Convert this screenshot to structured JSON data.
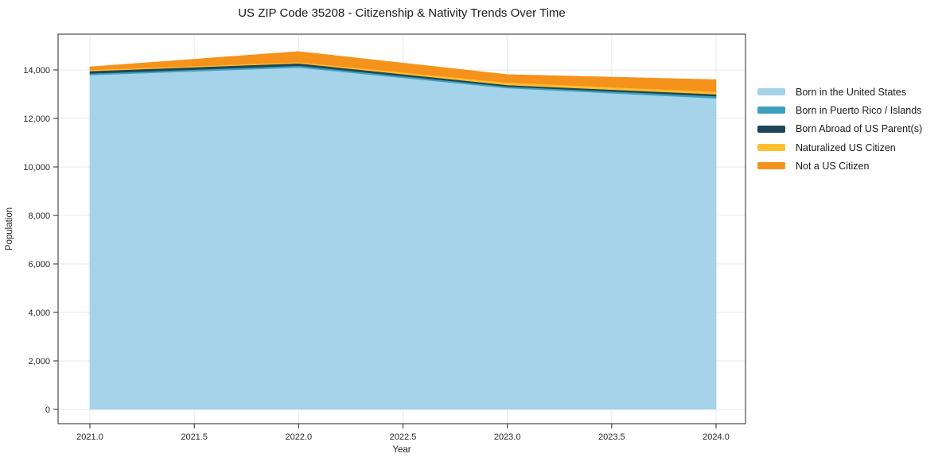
{
  "chart_data": {
    "type": "area",
    "stacked": true,
    "title": "US ZIP Code 35208 - Citizenship & Nativity Trends Over Time",
    "xlabel": "Year",
    "ylabel": "Population",
    "grid": true,
    "legend_position": "right-outside",
    "x": [
      2021,
      2022,
      2023,
      2024
    ],
    "series": [
      {
        "name": "Born in the United States",
        "color": "#A5D3E9",
        "values": [
          13790,
          14100,
          13250,
          12830
        ]
      },
      {
        "name": "Born in Puerto Rico / Islands",
        "color": "#3FA0BE",
        "values": [
          65,
          75,
          65,
          85
        ]
      },
      {
        "name": "Born Abroad of US Parent(s)",
        "color": "#1F4658",
        "values": [
          100,
          100,
          65,
          85
        ]
      },
      {
        "name": "Naturalized US Citizen",
        "color": "#FDBF2D",
        "values": [
          45,
          45,
          100,
          100
        ]
      },
      {
        "name": "Not a US Citizen",
        "color": "#F5921B",
        "values": [
          130,
          440,
          330,
          500
        ]
      }
    ],
    "stack_totals": [
      14130,
      14760,
      13810,
      13600
    ],
    "x_ticks": [
      {
        "value": 2021.0,
        "label": "2021.0"
      },
      {
        "value": 2021.5,
        "label": "2021.5"
      },
      {
        "value": 2022.0,
        "label": "2022.0"
      },
      {
        "value": 2022.5,
        "label": "2022.5"
      },
      {
        "value": 2023.0,
        "label": "2023.0"
      },
      {
        "value": 2023.5,
        "label": "2023.5"
      },
      {
        "value": 2024.0,
        "label": "2024.0"
      }
    ],
    "y_ticks": [
      {
        "value": 0,
        "label": "0"
      },
      {
        "value": 2000,
        "label": "2,000"
      },
      {
        "value": 4000,
        "label": "4,000"
      },
      {
        "value": 6000,
        "label": "6,000"
      },
      {
        "value": 8000,
        "label": "8,000"
      },
      {
        "value": 10000,
        "label": "10,000"
      },
      {
        "value": 12000,
        "label": "12,000"
      },
      {
        "value": 14000,
        "label": "14,000"
      }
    ]
  }
}
